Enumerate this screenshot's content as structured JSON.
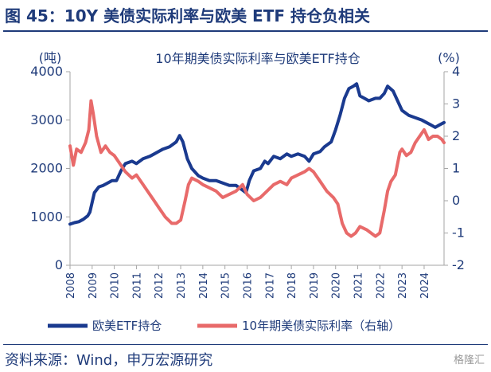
{
  "figure_title": "图 45：10Y 美债实际利率与欧美 ETF 持仓负相关",
  "source": "资料来源：Wind，申万宏源研究",
  "watermark": "格隆汇",
  "colors": {
    "etf": "#1a3a8f",
    "rate": "#e86a6a",
    "text": "#1f3b7a"
  },
  "chart_data": {
    "type": "line",
    "title": "10年期美债实际利率与欧美ETF持仓",
    "y_left_unit": "(吨)",
    "y_right_unit": "(%)",
    "y_left_range": [
      0,
      4000
    ],
    "y_right_range": [
      -2,
      4
    ],
    "y_left_ticks": [
      "0",
      "1000",
      "2000",
      "3000",
      "4000"
    ],
    "y_right_ticks": [
      "-2",
      "-1",
      "0",
      "1",
      "2",
      "3",
      "4"
    ],
    "x_range": [
      2008,
      2024.9
    ],
    "x_ticks": [
      "2008",
      "2009",
      "2010",
      "2011",
      "2012",
      "2013",
      "2014",
      "2015",
      "2016",
      "2017",
      "2018",
      "2019",
      "2020",
      "2021",
      "2022",
      "2023",
      "2024"
    ],
    "legend_position": "bottom",
    "series": [
      {
        "name": "欧美ETF持仓",
        "axis": "left",
        "x": [
          2008.0,
          2008.2,
          2008.4,
          2008.6,
          2008.8,
          2008.9,
          2009.0,
          2009.1,
          2009.3,
          2009.5,
          2009.7,
          2009.9,
          2010.1,
          2010.3,
          2010.5,
          2010.8,
          2011.0,
          2011.3,
          2011.6,
          2011.8,
          2012.0,
          2012.2,
          2012.5,
          2012.8,
          2012.95,
          2013.1,
          2013.3,
          2013.5,
          2013.8,
          2014.0,
          2014.3,
          2014.6,
          2014.9,
          2015.2,
          2015.5,
          2015.8,
          2015.95,
          2016.1,
          2016.3,
          2016.6,
          2016.8,
          2016.95,
          2017.2,
          2017.5,
          2017.8,
          2018.0,
          2018.3,
          2018.6,
          2018.8,
          2019.0,
          2019.3,
          2019.5,
          2019.8,
          2020.0,
          2020.2,
          2020.4,
          2020.6,
          2020.8,
          2020.95,
          2021.1,
          2021.3,
          2021.5,
          2021.8,
          2022.0,
          2022.2,
          2022.35,
          2022.6,
          2022.8,
          2023.0,
          2023.3,
          2023.6,
          2023.9,
          2024.1,
          2024.3,
          2024.5,
          2024.7,
          2024.9
        ],
        "values": [
          850,
          880,
          900,
          950,
          1020,
          1100,
          1300,
          1500,
          1620,
          1650,
          1700,
          1750,
          1750,
          1950,
          2100,
          2150,
          2100,
          2200,
          2250,
          2300,
          2350,
          2400,
          2450,
          2550,
          2680,
          2550,
          2200,
          2000,
          1850,
          1800,
          1750,
          1750,
          1700,
          1650,
          1650,
          1550,
          1500,
          1750,
          1950,
          2000,
          2150,
          2100,
          2250,
          2200,
          2300,
          2250,
          2300,
          2250,
          2150,
          2300,
          2350,
          2450,
          2550,
          2800,
          3100,
          3450,
          3650,
          3700,
          3750,
          3500,
          3450,
          3400,
          3450,
          3450,
          3550,
          3700,
          3600,
          3400,
          3200,
          3100,
          3050,
          3000,
          2950,
          2900,
          2850,
          2900,
          2950
        ]
      },
      {
        "name": "10年期美债实际利率（右轴）",
        "axis": "right",
        "x": [
          2008.0,
          2008.15,
          2008.3,
          2008.5,
          2008.7,
          2008.85,
          2008.95,
          2009.05,
          2009.2,
          2009.4,
          2009.6,
          2009.8,
          2010.0,
          2010.2,
          2010.5,
          2010.8,
          2011.0,
          2011.3,
          2011.6,
          2011.8,
          2012.0,
          2012.3,
          2012.6,
          2012.8,
          2013.0,
          2013.2,
          2013.35,
          2013.5,
          2013.8,
          2014.0,
          2014.3,
          2014.6,
          2014.9,
          2015.2,
          2015.5,
          2015.8,
          2016.0,
          2016.3,
          2016.6,
          2016.9,
          2017.2,
          2017.5,
          2017.8,
          2018.0,
          2018.3,
          2018.6,
          2018.8,
          2019.0,
          2019.3,
          2019.6,
          2019.9,
          2020.1,
          2020.3,
          2020.5,
          2020.7,
          2020.9,
          2021.1,
          2021.4,
          2021.6,
          2021.8,
          2022.0,
          2022.2,
          2022.35,
          2022.5,
          2022.7,
          2022.9,
          2023.0,
          2023.2,
          2023.4,
          2023.6,
          2023.8,
          2024.0,
          2024.2,
          2024.4,
          2024.6,
          2024.8,
          2024.9
        ],
        "values": [
          1.7,
          1.1,
          1.6,
          1.5,
          1.8,
          2.2,
          3.1,
          2.7,
          2.0,
          1.5,
          1.7,
          1.5,
          1.4,
          1.2,
          0.9,
          0.7,
          0.8,
          0.5,
          0.2,
          0.0,
          -0.2,
          -0.5,
          -0.7,
          -0.7,
          -0.6,
          0.0,
          0.5,
          0.7,
          0.6,
          0.5,
          0.4,
          0.3,
          0.1,
          0.2,
          0.3,
          0.5,
          0.2,
          0.0,
          0.1,
          0.3,
          0.5,
          0.6,
          0.5,
          0.7,
          0.8,
          0.9,
          1.0,
          0.9,
          0.6,
          0.3,
          0.1,
          -0.1,
          -0.7,
          -1.0,
          -1.1,
          -1.0,
          -0.8,
          -0.9,
          -1.0,
          -1.1,
          -1.0,
          -0.3,
          0.3,
          0.6,
          0.8,
          1.5,
          1.6,
          1.4,
          1.5,
          1.8,
          2.0,
          2.2,
          1.9,
          2.0,
          2.0,
          1.9,
          1.8
        ]
      }
    ]
  }
}
